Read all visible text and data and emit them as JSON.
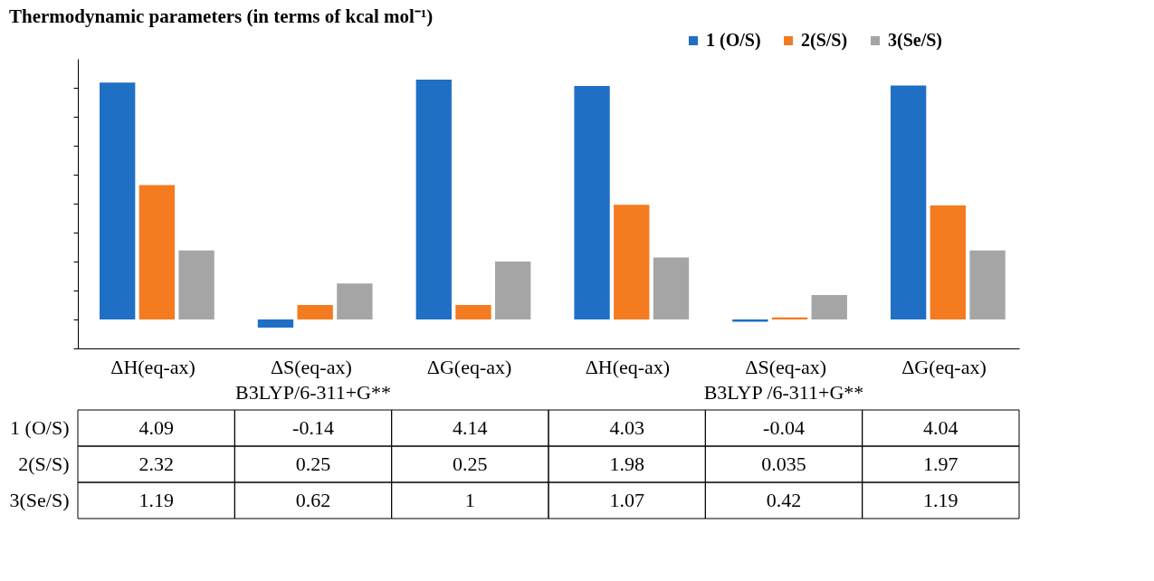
{
  "chart_data": {
    "type": "bar",
    "title": "Thermodynamic parameters (in terms of kcal mol⁻¹)",
    "categories": [
      "ΔH(eq-ax)",
      "ΔS(eq-ax)",
      "ΔG(eq-ax)",
      "ΔH(eq-ax)",
      "ΔS(eq-ax)",
      "ΔG(eq-ax)"
    ],
    "series": [
      {
        "name": "1 (O/S)",
        "color": "#1f6fc5",
        "values": [
          4.09,
          -0.14,
          4.14,
          4.03,
          -0.04,
          4.04
        ]
      },
      {
        "name": "2(S/S)",
        "color": "#f47b20",
        "values": [
          2.32,
          0.25,
          0.25,
          1.98,
          0.035,
          1.97
        ]
      },
      {
        "name": "3(Se/S)",
        "color": "#a5a5a5",
        "values": [
          1.19,
          0.62,
          1,
          1.07,
          0.42,
          1.19
        ]
      }
    ],
    "ylim": [
      -0.5,
      4.5
    ],
    "yticks": [
      {
        "value": -0.5,
        "label": null
      },
      {
        "value": 0,
        "label": null
      },
      {
        "value": 0.5,
        "label": null
      },
      {
        "value": 1,
        "label": null
      },
      {
        "value": 1.5,
        "label": null
      },
      {
        "value": 2,
        "label": null
      },
      {
        "value": 2.5,
        "label": null
      },
      {
        "value": 3,
        "label": null
      },
      {
        "value": 3.5,
        "label": null
      },
      {
        "value": 4,
        "label": null
      }
    ],
    "tick_labels": "x",
    "grid": false,
    "legend": "top right",
    "data_labels": true,
    "annotations": [
      "B3LYP/6-311+G**",
      "B3LYP /6-311+G**"
    ]
  }
}
